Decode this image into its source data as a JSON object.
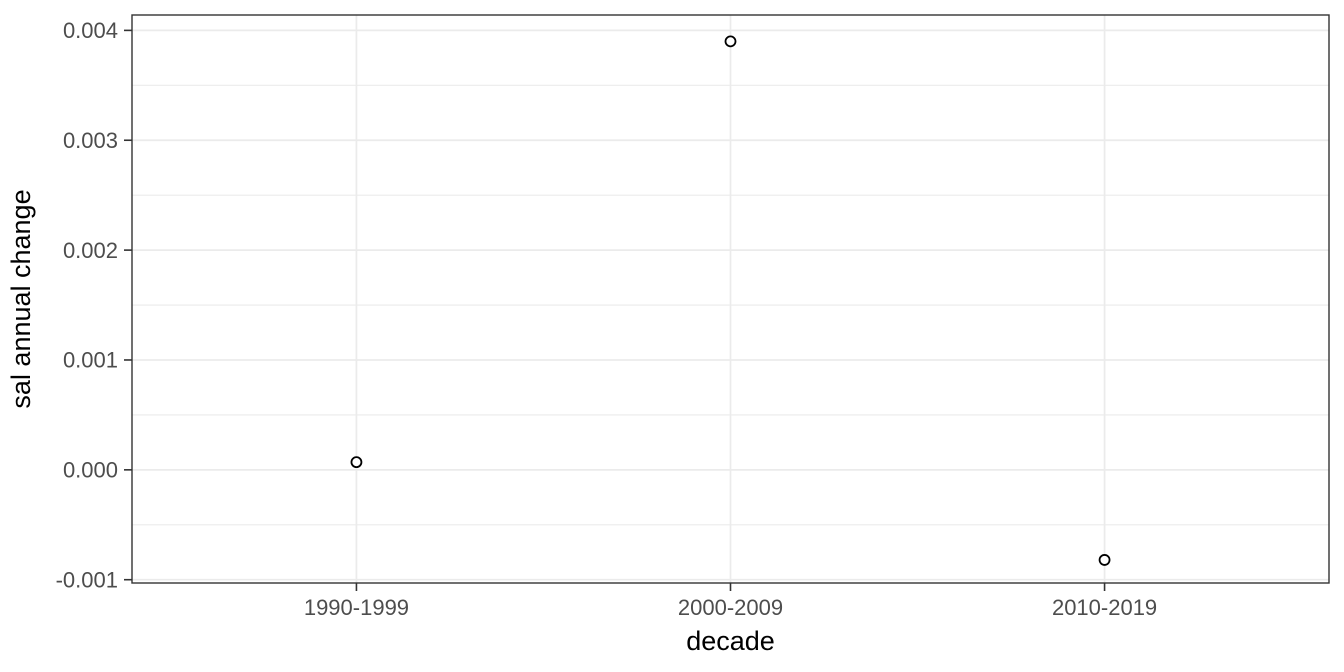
{
  "chart_data": {
    "type": "scatter",
    "title": "",
    "xlabel": "decade",
    "ylabel": "sal annual change",
    "categories": [
      "1990-1999",
      "2000-2009",
      "2010-2019"
    ],
    "values": [
      7e-05,
      0.0039,
      -0.00082
    ],
    "ylim": [
      -0.00103,
      0.00414
    ],
    "yticks": [
      -0.001,
      0.0,
      0.001,
      0.002,
      0.003,
      0.004
    ],
    "ytick_labels": [
      "-0.001",
      "0.000",
      "0.001",
      "0.002",
      "0.003",
      "0.004"
    ],
    "yminor_ticks": [
      -0.0005,
      0.0005,
      0.0015,
      0.0025,
      0.0035
    ],
    "grid": true,
    "legend": false,
    "point_style": {
      "shape": "open-circle",
      "stroke_color": "#000000",
      "fill_color": "#ffffff"
    },
    "colors": {
      "panel_background": "#ffffff",
      "panel_border": "#333333",
      "grid_major": "#ebebeb",
      "grid_minor": "#ebebeb",
      "tick_mark": "#333333",
      "tick_text": "#4d4d4d",
      "title_text": "#000000"
    }
  }
}
